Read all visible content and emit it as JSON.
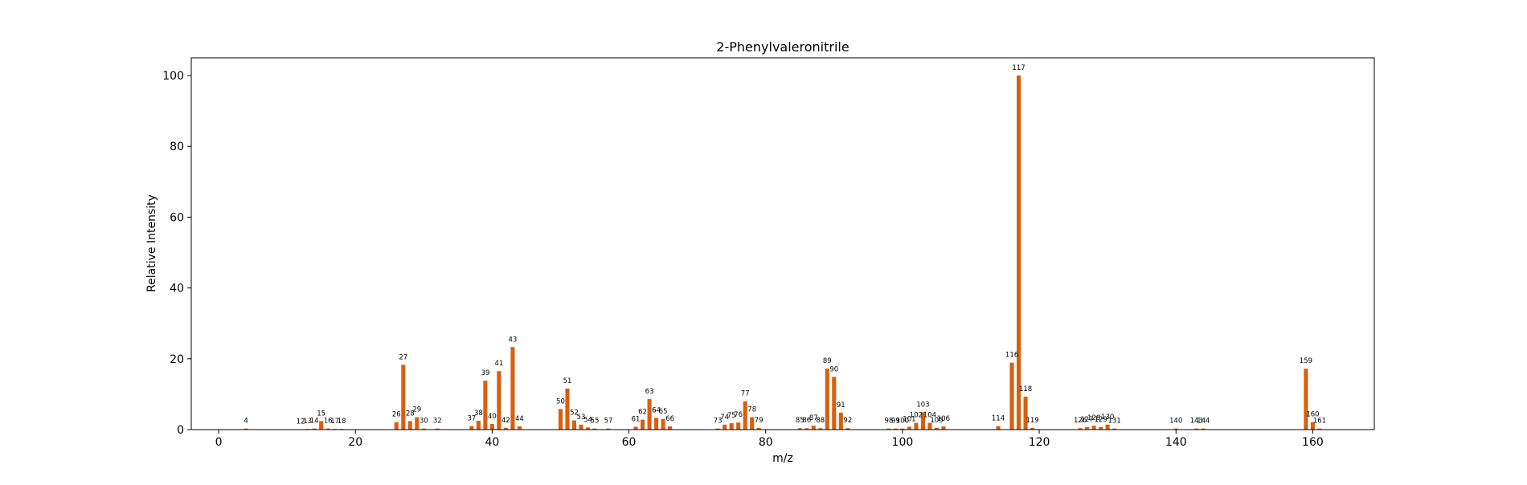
{
  "chart_data": {
    "type": "bar",
    "title": "2-Phenylvaleronitrile",
    "xlabel": "m/z",
    "ylabel": "Relative Intensity",
    "xlim": [
      -4,
      169
    ],
    "ylim": [
      0,
      105
    ],
    "xticks": [
      0,
      20,
      40,
      60,
      80,
      100,
      120,
      140,
      160
    ],
    "yticks": [
      0,
      20,
      40,
      60,
      80,
      100
    ],
    "grid": false,
    "bar_color": "#d95f0e",
    "x": [
      4,
      12,
      13,
      14,
      15,
      16,
      17,
      18,
      26,
      27,
      28,
      29,
      30,
      32,
      37,
      38,
      39,
      40,
      41,
      42,
      43,
      44,
      50,
      51,
      52,
      53,
      54,
      55,
      57,
      61,
      62,
      63,
      64,
      65,
      66,
      73,
      74,
      75,
      76,
      77,
      78,
      79,
      85,
      86,
      87,
      88,
      89,
      90,
      91,
      92,
      98,
      99,
      100,
      101,
      102,
      103,
      104,
      105,
      106,
      114,
      116,
      117,
      118,
      119,
      126,
      127,
      128,
      129,
      130,
      131,
      140,
      143,
      144,
      159,
      160,
      161
    ],
    "labels": [
      "4",
      "12",
      "13",
      "14",
      "15",
      "16",
      "17",
      "18",
      "26",
      "27",
      "28",
      "29",
      "30",
      "32",
      "37",
      "38",
      "39",
      "40",
      "41",
      "42",
      "43",
      "44",
      "50",
      "51",
      "52",
      "53",
      "54",
      "55",
      "57",
      "61",
      "62",
      "63",
      "64",
      "65",
      "66",
      "73",
      "74",
      "75",
      "76",
      "77",
      "78",
      "79",
      "85",
      "86",
      "87",
      "88",
      "89",
      "90",
      "91",
      "92",
      "98",
      "99",
      "100",
      "101",
      "102",
      "103",
      "104",
      "105",
      "106",
      "114",
      "116",
      "117",
      "118",
      "119",
      "126",
      "127",
      "128",
      "129",
      "130",
      "131",
      "140",
      "143",
      "144",
      "159",
      "160",
      "161"
    ],
    "values": [
      0.3,
      0.1,
      0.2,
      0.3,
      2.4,
      0.3,
      0.2,
      0.2,
      2.1,
      18.3,
      2.4,
      3.5,
      0.3,
      0.3,
      1.0,
      2.5,
      13.8,
      1.6,
      16.5,
      0.5,
      23.3,
      0.9,
      5.8,
      11.6,
      2.6,
      1.4,
      0.6,
      0.3,
      0.3,
      0.8,
      2.8,
      8.6,
      3.3,
      3.0,
      0.9,
      0.3,
      1.4,
      1.8,
      2.0,
      8.0,
      3.5,
      0.5,
      0.4,
      0.4,
      1.1,
      0.4,
      17.2,
      14.9,
      4.8,
      0.4,
      0.3,
      0.3,
      0.3,
      0.8,
      1.9,
      4.9,
      1.9,
      0.5,
      0.9,
      1.0,
      18.9,
      100.0,
      9.3,
      0.5,
      0.4,
      0.7,
      1.1,
      0.7,
      1.4,
      0.3,
      0.3,
      0.3,
      0.3,
      17.2,
      2.1,
      0.3
    ]
  }
}
